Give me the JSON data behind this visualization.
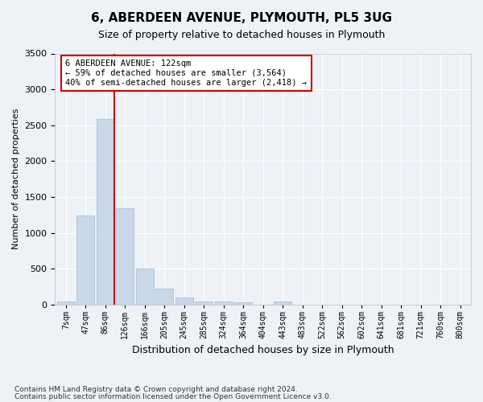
{
  "title": "6, ABERDEEN AVENUE, PLYMOUTH, PL5 3UG",
  "subtitle": "Size of property relative to detached houses in Plymouth",
  "xlabel": "Distribution of detached houses by size in Plymouth",
  "ylabel": "Number of detached properties",
  "bar_color": "#c8d8e8",
  "bar_edgecolor": "#a0b8d0",
  "bins": [
    "7sqm",
    "47sqm",
    "86sqm",
    "126sqm",
    "166sqm",
    "205sqm",
    "245sqm",
    "285sqm",
    "324sqm",
    "364sqm",
    "404sqm",
    "443sqm",
    "483sqm",
    "522sqm",
    "562sqm",
    "602sqm",
    "641sqm",
    "681sqm",
    "721sqm",
    "760sqm",
    "800sqm"
  ],
  "values": [
    50,
    1240,
    2590,
    1340,
    500,
    220,
    105,
    50,
    45,
    30,
    0,
    40,
    0,
    0,
    0,
    0,
    0,
    0,
    0,
    0,
    0
  ],
  "ylim": [
    0,
    3500
  ],
  "yticks": [
    0,
    500,
    1000,
    1500,
    2000,
    2500,
    3000,
    3500
  ],
  "annotation_line1": "6 ABERDEEN AVENUE: 122sqm",
  "annotation_line2": "← 59% of detached houses are smaller (3,564)",
  "annotation_line3": "40% of semi-detached houses are larger (2,418) →",
  "footnote1": "Contains HM Land Registry data © Crown copyright and database right 2024.",
  "footnote2": "Contains public sector information licensed under the Open Government Licence v3.0.",
  "background_color": "#eef2f7",
  "grid_color": "#ffffff",
  "annotation_box_color": "#ffffff",
  "annotation_box_edgecolor": "#cc0000",
  "red_line_color": "#cc0000"
}
